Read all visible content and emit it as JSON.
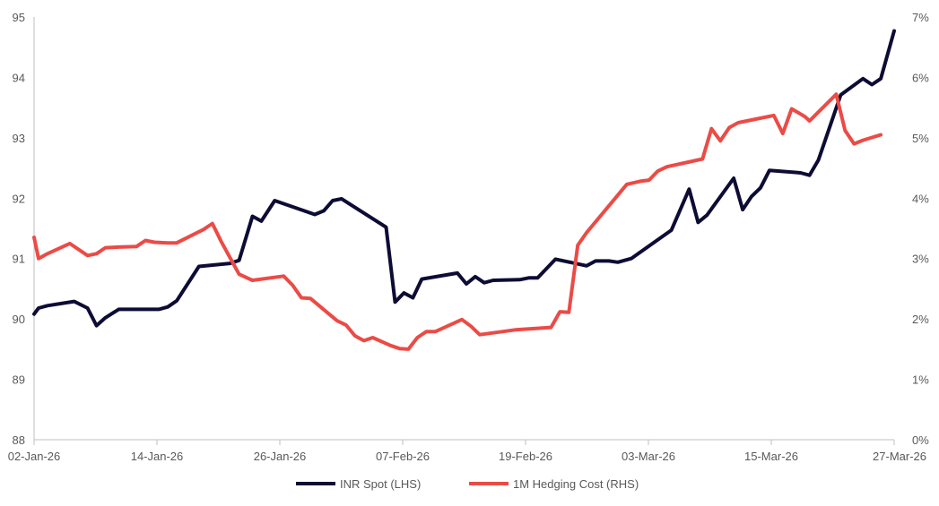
{
  "chart_data": {
    "type": "line",
    "title": "",
    "xlabel": "",
    "ylabel": "",
    "x_tick_labels": [
      "02-Jan-26",
      "14-Jan-26",
      "26-Jan-26",
      "07-Feb-26",
      "19-Feb-26",
      "03-Mar-26",
      "15-Mar-26",
      "27-Mar-26"
    ],
    "y_left": {
      "min": 88,
      "max": 95,
      "step": 1,
      "tick_labels": [
        "88",
        "89",
        "90",
        "91",
        "92",
        "93",
        "94",
        "95"
      ]
    },
    "y_right": {
      "min": 0,
      "max": 7,
      "step": 1,
      "tick_labels": [
        "0%",
        "1%",
        "2%",
        "3%",
        "4%",
        "5%",
        "6%",
        "7%"
      ]
    },
    "x_days_total": 84,
    "legend_position": "bottom",
    "series": [
      {
        "name": "INR Spot (LHS)",
        "axis": "left",
        "color": "#0d0c35",
        "points": [
          [
            0,
            90.08
          ],
          [
            0.5,
            90.18
          ],
          [
            1.5,
            90.22
          ],
          [
            4.5,
            90.29
          ],
          [
            6,
            90.18
          ],
          [
            7,
            89.89
          ],
          [
            8,
            90.02
          ],
          [
            9.5,
            90.16
          ],
          [
            11,
            90.16
          ],
          [
            12.5,
            90.16
          ],
          [
            14,
            90.16
          ],
          [
            15,
            90.2
          ],
          [
            16,
            90.3
          ],
          [
            18.5,
            90.87
          ],
          [
            22,
            90.92
          ],
          [
            23,
            90.97
          ],
          [
            24.5,
            91.7
          ],
          [
            25.5,
            91.62
          ],
          [
            27,
            91.96
          ],
          [
            31.5,
            91.73
          ],
          [
            32.5,
            91.79
          ],
          [
            33.5,
            91.96
          ],
          [
            34.5,
            91.99
          ],
          [
            39.5,
            91.52
          ],
          [
            40.5,
            90.28
          ],
          [
            41.5,
            90.43
          ],
          [
            42.5,
            90.35
          ],
          [
            43.5,
            90.66
          ],
          [
            47.5,
            90.76
          ],
          [
            48.5,
            90.58
          ],
          [
            49.5,
            90.7
          ],
          [
            50.5,
            90.6
          ],
          [
            51.5,
            90.64
          ],
          [
            54.5,
            90.65
          ],
          [
            55.5,
            90.68
          ],
          [
            56.5,
            90.68
          ],
          [
            58.5,
            90.99
          ],
          [
            62,
            90.88
          ],
          [
            63,
            90.96
          ],
          [
            64.5,
            90.96
          ],
          [
            65.5,
            90.94
          ],
          [
            67,
            91
          ],
          [
            71.5,
            91.47
          ],
          [
            73.5,
            92.15
          ],
          [
            74.5,
            91.6
          ],
          [
            75.5,
            91.72
          ],
          [
            78.5,
            92.33
          ],
          [
            79.5,
            91.81
          ],
          [
            80.5,
            92.03
          ],
          [
            81.5,
            92.17
          ],
          [
            82.5,
            92.46
          ],
          [
            86,
            92.42
          ],
          [
            87,
            92.38
          ],
          [
            88,
            92.63
          ],
          [
            90.5,
            93.71
          ],
          [
            93,
            93.98
          ],
          [
            94,
            93.88
          ],
          [
            95,
            93.98
          ],
          [
            96.5,
            94.77
          ]
        ]
      },
      {
        "name": "1M Hedging Cost (RHS)",
        "axis": "right",
        "color": "#eb4b46",
        "points": [
          [
            0,
            3.35
          ],
          [
            0.5,
            3.0
          ],
          [
            1.5,
            3.08
          ],
          [
            4,
            3.25
          ],
          [
            6,
            3.05
          ],
          [
            7,
            3.08
          ],
          [
            8,
            3.18
          ],
          [
            9.5,
            3.19
          ],
          [
            11.5,
            3.2
          ],
          [
            12.5,
            3.3
          ],
          [
            13.5,
            3.27
          ],
          [
            15,
            3.26
          ],
          [
            16,
            3.26
          ],
          [
            19,
            3.48
          ],
          [
            20,
            3.58
          ],
          [
            21,
            3.28
          ],
          [
            23,
            2.74
          ],
          [
            24.5,
            2.64
          ],
          [
            28,
            2.71
          ],
          [
            29,
            2.56
          ],
          [
            30,
            2.35
          ],
          [
            31,
            2.34
          ],
          [
            34,
            1.97
          ],
          [
            35,
            1.9
          ],
          [
            36,
            1.72
          ],
          [
            37,
            1.64
          ],
          [
            38,
            1.69
          ],
          [
            40,
            1.56
          ],
          [
            41,
            1.51
          ],
          [
            42,
            1.5
          ],
          [
            43,
            1.69
          ],
          [
            44,
            1.79
          ],
          [
            45,
            1.79
          ],
          [
            48,
            1.99
          ],
          [
            49,
            1.88
          ],
          [
            50,
            1.74
          ],
          [
            54,
            1.82
          ],
          [
            58,
            1.86
          ],
          [
            59,
            2.12
          ],
          [
            60,
            2.11
          ],
          [
            61,
            3.22
          ],
          [
            62,
            3.43
          ],
          [
            66.5,
            4.23
          ],
          [
            68,
            4.28
          ],
          [
            69,
            4.3
          ],
          [
            70,
            4.45
          ],
          [
            71,
            4.52
          ],
          [
            75,
            4.65
          ],
          [
            76,
            5.15
          ],
          [
            77,
            4.95
          ],
          [
            78,
            5.17
          ],
          [
            79,
            5.25
          ],
          [
            83,
            5.37
          ],
          [
            84,
            5.07
          ],
          [
            85,
            5.48
          ],
          [
            86.5,
            5.35
          ],
          [
            87,
            5.28
          ],
          [
            90,
            5.72
          ],
          [
            91,
            5.12
          ],
          [
            92,
            4.9
          ],
          [
            93,
            4.96
          ],
          [
            95,
            5.05
          ]
        ]
      }
    ]
  }
}
